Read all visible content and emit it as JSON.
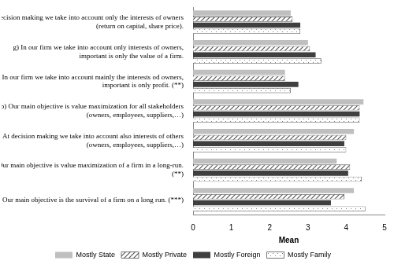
{
  "chart_data": {
    "type": "bar",
    "orientation": "horizontal",
    "x_label": "Mean",
    "categories": [
      [
        "d) At decision making we take into account only the interests of owners",
        "(return on capital, share price)."
      ],
      [
        "g) In our firm we take into account only interests of owners,",
        "important is only the value of a firm."
      ],
      [
        "f) In our firm we take into account mainly the interests od owners,",
        "important is only profit. (**)"
      ],
      [
        "b) Our main objective is value maximization for all stakeholders",
        "(owners, employees, suppliers,…)"
      ],
      [
        "e) At decision making we take into account also interests of others",
        "(owners, employees, suppliers,…)"
      ],
      [
        "a) Our main objective is value maximization of a firm in a long-run.",
        "(**)"
      ],
      [
        "c) Our main objective is the survival of a firm on a long run. (***)"
      ]
    ],
    "series": [
      {
        "name": "Mostly State",
        "color": "#bfbfbf",
        "values": [
          2.55,
          3.0,
          2.4,
          4.45,
          4.2,
          3.75,
          4.2
        ]
      },
      {
        "name": "Mostly Private",
        "color": "#555555",
        "marker": "hatch",
        "values": [
          2.6,
          3.05,
          2.4,
          4.35,
          4.0,
          4.1,
          3.95
        ]
      },
      {
        "name": "Mostly Foreign",
        "color": "#3f3f3f",
        "values": [
          2.8,
          3.2,
          2.75,
          4.35,
          3.95,
          4.05,
          3.6
        ]
      },
      {
        "name": "Mostly Family",
        "color": "#7f7f7f",
        "marker": "dots",
        "values": [
          2.8,
          3.35,
          2.55,
          4.35,
          4.0,
          4.4,
          4.5
        ]
      }
    ],
    "xlim": [
      0,
      5
    ],
    "xticks": [
      0,
      1,
      2,
      3,
      4,
      5
    ],
    "grid": false,
    "legend": "bottom"
  }
}
